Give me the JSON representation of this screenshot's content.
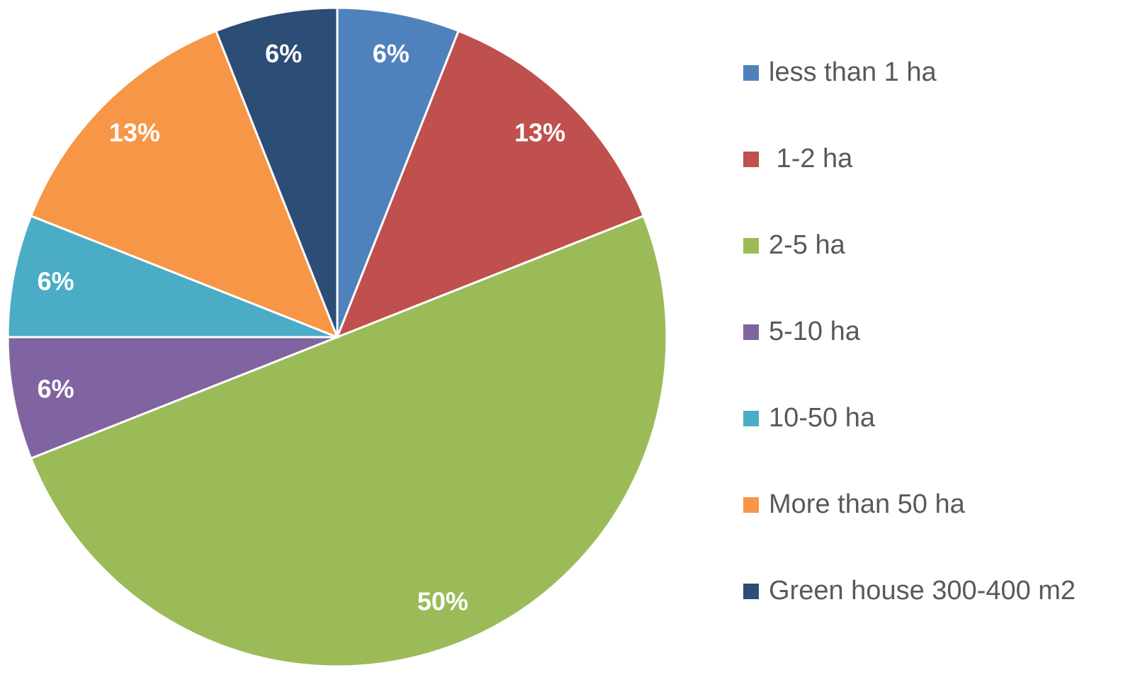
{
  "chart_data": {
    "type": "pie",
    "categories": [
      "less than 1 ha",
      " 1-2 ha",
      "2-5 ha",
      "5-10 ha",
      "10-50 ha",
      "More than 50 ha",
      "Green house 300-400 m2"
    ],
    "values": [
      6,
      13,
      50,
      6,
      6,
      13,
      6
    ],
    "value_labels": [
      "6%",
      "13%",
      "50%",
      "6%",
      "6%",
      "13%",
      "6%"
    ],
    "colors": [
      "#4f81bd",
      "#c0504d",
      "#9bbb59",
      "#8064a2",
      "#4bacc6",
      "#f79646",
      "#2c4d75"
    ],
    "legend": "right"
  }
}
